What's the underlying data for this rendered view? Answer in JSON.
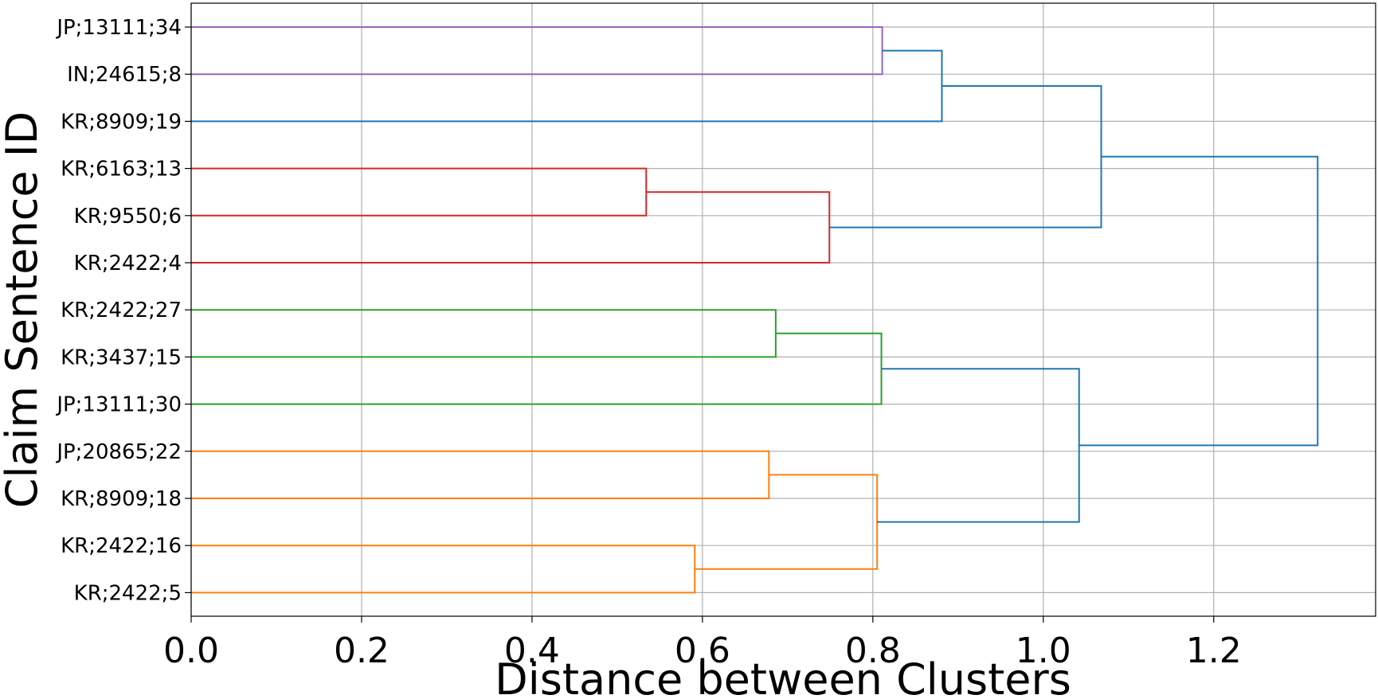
{
  "chart_data": {
    "type": "dendrogram",
    "orientation": "horizontal",
    "title": "",
    "xlabel": "Distance between Clusters",
    "ylabel": "Claim Sentence ID",
    "xlim": [
      0,
      1.39
    ],
    "x_ticks": [
      0.0,
      0.2,
      0.4,
      0.6,
      0.8,
      1.0,
      1.2
    ],
    "x_tick_labels": [
      "0.0",
      "0.2",
      "0.4",
      "0.6",
      "0.8",
      "1.0",
      "1.2"
    ],
    "grid": true,
    "leaves": [
      "JP;13111;34",
      "IN;24615;8",
      "KR;8909;19",
      "KR;6163;13",
      "KR;9550;6",
      "KR;2422;4",
      "KR;2422;27",
      "KR;3437;15",
      "JP;13111;30",
      "JP;20865;22",
      "KR;8909;18",
      "KR;2422;16",
      "KR;2422;5"
    ],
    "colors": {
      "purple": "#9467bd",
      "red": "#d62728",
      "green": "#2ca02c",
      "orange": "#ff7f0e",
      "blue": "#1f77b4"
    },
    "merges": [
      {
        "id": "m1",
        "children": [
          "JP;13111;34",
          "IN;24615;8"
        ],
        "distance": 0.811,
        "color": "purple"
      },
      {
        "id": "m2",
        "children": [
          "m1",
          "KR;8909;19"
        ],
        "distance": 0.881,
        "color": "blue"
      },
      {
        "id": "m3",
        "children": [
          "KR;6163;13",
          "KR;9550;6"
        ],
        "distance": 0.534,
        "color": "red"
      },
      {
        "id": "m4",
        "children": [
          "m3",
          "KR;2422;4"
        ],
        "distance": 0.749,
        "color": "red"
      },
      {
        "id": "m5",
        "children": [
          "m2",
          "m4"
        ],
        "distance": 1.068,
        "color": "blue"
      },
      {
        "id": "m6",
        "children": [
          "KR;2422;27",
          "KR;3437;15"
        ],
        "distance": 0.686,
        "color": "green"
      },
      {
        "id": "m7",
        "children": [
          "m6",
          "JP;13111;30"
        ],
        "distance": 0.81,
        "color": "green"
      },
      {
        "id": "m8",
        "children": [
          "JP;20865;22",
          "KR;8909;18"
        ],
        "distance": 0.678,
        "color": "orange"
      },
      {
        "id": "m9",
        "children": [
          "KR;2422;16",
          "KR;2422;5"
        ],
        "distance": 0.591,
        "color": "orange"
      },
      {
        "id": "m10",
        "children": [
          "m8",
          "m9"
        ],
        "distance": 0.805,
        "color": "orange"
      },
      {
        "id": "m11",
        "children": [
          "m7",
          "m10"
        ],
        "distance": 1.042,
        "color": "blue"
      },
      {
        "id": "m12",
        "children": [
          "m5",
          "m11"
        ],
        "distance": 1.322,
        "color": "blue"
      }
    ]
  }
}
